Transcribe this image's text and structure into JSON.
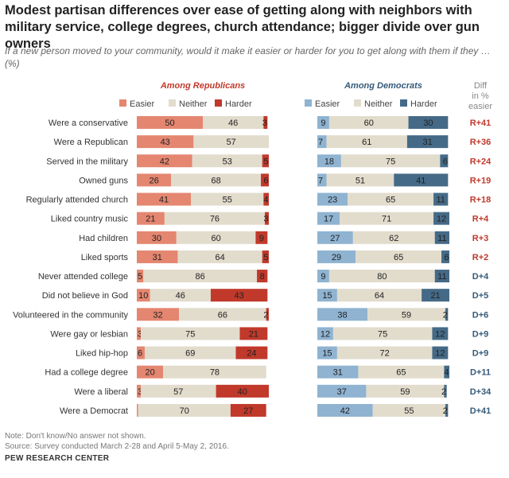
{
  "title": "Modest partisan differences over ease of getting along with neighbors with military service, college degrees, church attendance; bigger divide over gun owners",
  "subtitle": "If a new person moved to your community, would it make it easier or harder for you to get along with them if they … (%)",
  "note": "Note: Don't know/No answer not shown.",
  "source": "Source: Survey conducted March 2-28 and April 5-May 2, 2016.",
  "footer": "PEW RESEARCH CENTER",
  "colors": {
    "rep_easier": "#e48670",
    "rep_harder": "#c0392b",
    "dem_easier": "#8fb3d1",
    "dem_harder": "#456a87",
    "neither": "#e2dccd",
    "r_diff": "#c0392b",
    "d_diff": "#345a7a"
  },
  "chart_data": {
    "type": "bar",
    "stacked": true,
    "panels": [
      "Among Republicans",
      "Among Democrats"
    ],
    "legend": [
      "Easier",
      "Neither",
      "Harder"
    ],
    "diff_header": [
      "Diff",
      "in %",
      "easier"
    ],
    "categories": [
      "Were a conservative",
      "Were a Republican",
      "Served in the military",
      "Owned guns",
      "Regularly attended church",
      "Liked country music",
      "Had children",
      "Liked sports",
      "Never attended college",
      "Did not believe in God",
      "Volunteered in the community",
      "Were gay or lesbian",
      "Liked hip-hop",
      "Had a college degree",
      "Were a liberal",
      "Were a Democrat"
    ],
    "republicans": {
      "easier": [
        50,
        43,
        42,
        26,
        41,
        21,
        30,
        31,
        5,
        10,
        32,
        3,
        6,
        20,
        3,
        1
      ],
      "neither": [
        46,
        57,
        53,
        68,
        55,
        76,
        60,
        64,
        86,
        46,
        66,
        75,
        69,
        78,
        57,
        70
      ],
      "harder": [
        3,
        null,
        5,
        6,
        4,
        3,
        9,
        5,
        8,
        43,
        2,
        21,
        24,
        null,
        40,
        27
      ]
    },
    "democrats": {
      "easier": [
        9,
        7,
        18,
        7,
        23,
        17,
        27,
        29,
        9,
        15,
        38,
        12,
        15,
        31,
        37,
        42
      ],
      "neither": [
        60,
        61,
        75,
        51,
        65,
        71,
        62,
        65,
        80,
        64,
        59,
        75,
        72,
        65,
        59,
        55
      ],
      "harder": [
        30,
        31,
        6,
        41,
        11,
        12,
        11,
        6,
        11,
        21,
        2,
        12,
        12,
        4,
        2,
        2
      ]
    },
    "diff": [
      "R+41",
      "R+36",
      "R+24",
      "R+19",
      "R+18",
      "R+4",
      "R+3",
      "R+2",
      "D+4",
      "D+5",
      "D+6",
      "D+9",
      "D+9",
      "D+11",
      "D+34",
      "D+41"
    ],
    "xlim": [
      0,
      100
    ]
  }
}
